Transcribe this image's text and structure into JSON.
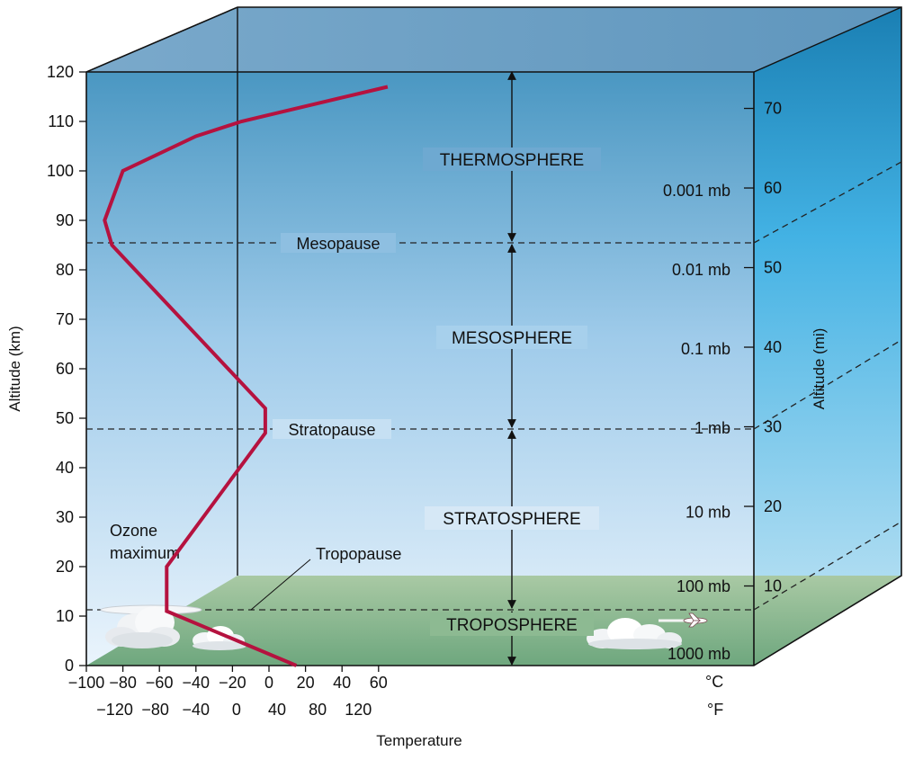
{
  "colors": {
    "profile": "#b5123f",
    "sky_top": "#4a97c2",
    "sky_bottom": "#eaf3fb",
    "ground": "#7aac86",
    "top_face": "#75a3c6",
    "side_top": "#1f86b8"
  },
  "axes": {
    "left_title": "Altitude (km)",
    "right_title": "Altitude (mi)",
    "bottom_title": "Temperature",
    "celsius_unit": "°C",
    "fahrenheit_unit": "°F",
    "km_ticks": [
      "0",
      "10",
      "20",
      "30",
      "40",
      "50",
      "60",
      "70",
      "80",
      "90",
      "100",
      "110",
      "120"
    ],
    "celsius_ticks": [
      "−100",
      "−80",
      "−60",
      "−40",
      "−20",
      "0",
      "20",
      "40",
      "60"
    ],
    "fahrenheit_ticks": [
      "−120",
      "−80",
      "−40",
      "0",
      "40",
      "80",
      "120"
    ],
    "mile_ticks": [
      "10",
      "20",
      "30",
      "40",
      "50",
      "60",
      "70"
    ]
  },
  "pressure_labels": [
    "0.001 mb",
    "0.01 mb",
    "0.1 mb",
    "1 mb",
    "10 mb",
    "100 mb",
    "1000 mb"
  ],
  "layers": {
    "thermosphere": "THERMOSPHERE",
    "mesosphere": "MESOSPHERE",
    "stratosphere": "STRATOSPHERE",
    "troposphere": "TROPOSPHERE"
  },
  "boundaries": {
    "mesopause": "Mesopause",
    "stratopause": "Stratopause",
    "tropopause": "Tropopause"
  },
  "ozone": {
    "line1": "Ozone",
    "line2": "maximum"
  },
  "profile_points": [
    {
      "temp_c": 15,
      "alt_km": 0
    },
    {
      "temp_c": -56,
      "alt_km": 11
    },
    {
      "temp_c": -56,
      "alt_km": 20
    },
    {
      "temp_c": -2,
      "alt_km": 47
    },
    {
      "temp_c": -2,
      "alt_km": 52
    },
    {
      "temp_c": -86,
      "alt_km": 85
    },
    {
      "temp_c": -90,
      "alt_km": 90
    },
    {
      "temp_c": -80,
      "alt_km": 100
    },
    {
      "temp_c": -40,
      "alt_km": 107
    },
    {
      "temp_c": -15,
      "alt_km": 110
    },
    {
      "temp_c": 65,
      "alt_km": 117
    }
  ]
}
